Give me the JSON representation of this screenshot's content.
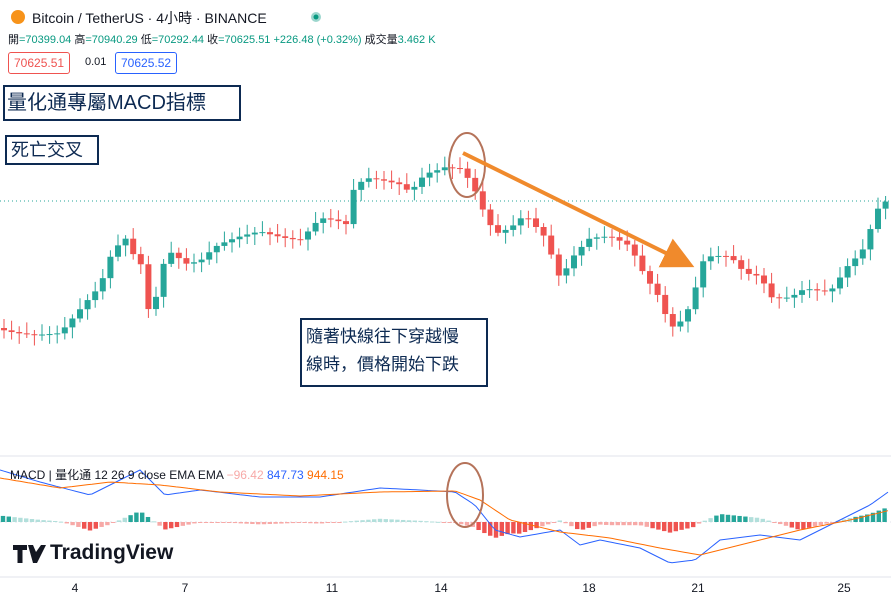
{
  "header": {
    "symbol": "Bitcoin / TetherUS · 4小時 · BINANCE",
    "ohlc": [
      {
        "label": "開",
        "value": "=70399.04"
      },
      {
        "label": "高",
        "value": "=70940.29"
      },
      {
        "label": "低",
        "value": "=70292.44"
      },
      {
        "label": "收",
        "value": "=70625.51"
      }
    ],
    "change": "+226.48 (+0.32%)",
    "volume_label": "成交量",
    "volume": "3.462 K"
  },
  "order": {
    "sell": "70625.51",
    "spread": "0.01",
    "buy": "70625.52"
  },
  "annotations": {
    "title": "量化通專屬MACD指標",
    "tag": "死亡交叉",
    "note": [
      "隨著快線往下穿越慢",
      "線時，價格開始下跌"
    ]
  },
  "macd_legend": {
    "name": "MACD",
    "source": "量化通",
    "params": "12 26 9 close EMA EMA",
    "histogram": "−96.42",
    "macd": "847.73",
    "signal": "944.15"
  },
  "brand": "TradingView",
  "x_axis": [
    "4",
    "7",
    "11",
    "14",
    "18",
    "21",
    "25"
  ]
}
